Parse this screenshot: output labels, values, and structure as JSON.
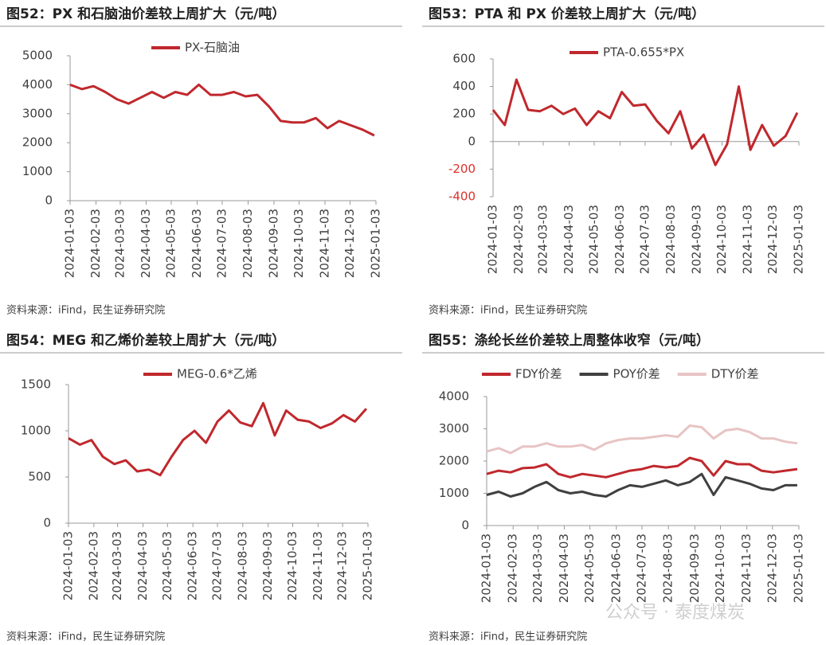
{
  "chart_data": [
    {
      "type": "line",
      "title": "图52：PX 和石脑油价差较上周扩大（元/吨）",
      "source": "资料来源：iFind，民生证券研究院",
      "x": [
        "2024-01-03",
        "2024-01-17",
        "2024-01-31",
        "2024-02-14",
        "2024-02-28",
        "2024-03-13",
        "2024-03-27",
        "2024-04-10",
        "2024-04-24",
        "2024-05-08",
        "2024-05-22",
        "2024-06-05",
        "2024-06-19",
        "2024-07-03",
        "2024-07-17",
        "2024-07-31",
        "2024-08-14",
        "2024-08-28",
        "2024-09-11",
        "2024-09-25",
        "2024-10-09",
        "2024-10-23",
        "2024-11-06",
        "2024-11-20",
        "2024-12-04",
        "2024-12-18",
        "2025-01-01"
      ],
      "series": [
        {
          "name": "PX-石脑油",
          "color": "#c0282d",
          "values": [
            4000,
            3850,
            3950,
            3750,
            3500,
            3350,
            3550,
            3750,
            3550,
            3750,
            3650,
            4000,
            3650,
            3650,
            3750,
            3600,
            3650,
            3250,
            2750,
            2700,
            2700,
            2850,
            2500,
            2750,
            2600,
            2450,
            2250
          ]
        }
      ],
      "xlim": [
        "2024-01-03",
        "2025-01-03"
      ],
      "xticks": [
        "2024-01-03",
        "2024-02-03",
        "2024-03-03",
        "2024-04-03",
        "2024-05-03",
        "2024-06-03",
        "2024-07-03",
        "2024-08-03",
        "2024-09-03",
        "2024-10-03",
        "2024-11-03",
        "2024-12-03",
        "2025-01-03"
      ],
      "ylim": [
        0,
        5000
      ],
      "yticks": [
        0,
        1000,
        2000,
        3000,
        4000,
        5000
      ]
    },
    {
      "type": "line",
      "title": "图53：PTA 和 PX 价差较上周扩大（元/吨）",
      "source": "资料来源：iFind，民生证券研究院",
      "x": [
        "2024-01-03",
        "2024-01-17",
        "2024-01-31",
        "2024-02-14",
        "2024-02-28",
        "2024-03-13",
        "2024-03-27",
        "2024-04-10",
        "2024-04-24",
        "2024-05-08",
        "2024-05-22",
        "2024-06-05",
        "2024-06-19",
        "2024-07-03",
        "2024-07-17",
        "2024-07-31",
        "2024-08-14",
        "2024-08-28",
        "2024-09-11",
        "2024-09-25",
        "2024-10-09",
        "2024-10-23",
        "2024-11-06",
        "2024-11-20",
        "2024-12-04",
        "2024-12-18",
        "2025-01-01"
      ],
      "series": [
        {
          "name": "PTA-0.655*PX",
          "color": "#c0282d",
          "values": [
            230,
            120,
            450,
            230,
            220,
            260,
            200,
            240,
            120,
            220,
            170,
            360,
            260,
            270,
            150,
            60,
            220,
            -50,
            50,
            -170,
            -20,
            400,
            -60,
            120,
            -30,
            40,
            210
          ]
        }
      ],
      "xlim": [
        "2024-01-03",
        "2025-01-03"
      ],
      "xticks": [
        "2024-01-03",
        "2024-02-03",
        "2024-03-03",
        "2024-04-03",
        "2024-05-03",
        "2024-06-03",
        "2024-07-03",
        "2024-08-03",
        "2024-09-03",
        "2024-10-03",
        "2024-11-03",
        "2024-12-03",
        "2025-01-03"
      ],
      "ylim": [
        -400,
        600
      ],
      "yticks": [
        -400,
        -200,
        0,
        200,
        400,
        600
      ],
      "negative_tick_color": "#e0302a"
    },
    {
      "type": "line",
      "title": "图54：MEG 和乙烯价差较上周扩大（元/吨）",
      "source": "资料来源：iFind，民生证券研究院",
      "x": [
        "2024-01-03",
        "2024-01-17",
        "2024-01-31",
        "2024-02-14",
        "2024-02-28",
        "2024-03-13",
        "2024-03-27",
        "2024-04-10",
        "2024-04-24",
        "2024-05-08",
        "2024-05-22",
        "2024-06-05",
        "2024-06-19",
        "2024-07-03",
        "2024-07-17",
        "2024-07-31",
        "2024-08-14",
        "2024-08-28",
        "2024-09-11",
        "2024-09-25",
        "2024-10-09",
        "2024-10-23",
        "2024-11-06",
        "2024-11-20",
        "2024-12-04",
        "2024-12-18",
        "2025-01-01"
      ],
      "series": [
        {
          "name": "MEG-0.6*乙烯",
          "color": "#c0282d",
          "values": [
            920,
            850,
            900,
            720,
            640,
            680,
            560,
            580,
            520,
            720,
            900,
            1000,
            870,
            1100,
            1220,
            1090,
            1050,
            1300,
            950,
            1220,
            1120,
            1100,
            1030,
            1080,
            1170,
            1100,
            1240
          ]
        }
      ],
      "xlim": [
        "2024-01-03",
        "2025-01-03"
      ],
      "xticks": [
        "2024-01-03",
        "2024-02-03",
        "2024-03-03",
        "2024-04-03",
        "2024-05-03",
        "2024-06-03",
        "2024-07-03",
        "2024-08-03",
        "2024-09-03",
        "2024-10-03",
        "2024-11-03",
        "2024-12-03",
        "2025-01-03"
      ],
      "ylim": [
        0,
        1500
      ],
      "yticks": [
        0,
        500,
        1000,
        1500
      ]
    },
    {
      "type": "line",
      "title": "图55：涤纶长丝价差较上周整体收窄（元/吨）",
      "source": "资料来源：iFind，民生证券研究院",
      "x": [
        "2024-01-03",
        "2024-01-17",
        "2024-01-31",
        "2024-02-14",
        "2024-02-28",
        "2024-03-13",
        "2024-03-27",
        "2024-04-10",
        "2024-04-24",
        "2024-05-08",
        "2024-05-22",
        "2024-06-05",
        "2024-06-19",
        "2024-07-03",
        "2024-07-17",
        "2024-07-31",
        "2024-08-14",
        "2024-08-28",
        "2024-09-11",
        "2024-09-25",
        "2024-10-09",
        "2024-10-23",
        "2024-11-06",
        "2024-11-20",
        "2024-12-04",
        "2024-12-18",
        "2025-01-01"
      ],
      "series": [
        {
          "name": "FDY价差",
          "color": "#c0282d",
          "values": [
            1600,
            1700,
            1650,
            1780,
            1800,
            1900,
            1600,
            1500,
            1600,
            1550,
            1500,
            1600,
            1700,
            1750,
            1850,
            1800,
            1850,
            2100,
            2000,
            1550,
            2000,
            1900,
            1900,
            1700,
            1650,
            1700,
            1750
          ]
        },
        {
          "name": "POY价差",
          "color": "#404040",
          "values": [
            950,
            1050,
            900,
            1000,
            1200,
            1350,
            1100,
            1000,
            1050,
            950,
            900,
            1100,
            1250,
            1200,
            1300,
            1400,
            1250,
            1350,
            1600,
            950,
            1500,
            1400,
            1300,
            1150,
            1100,
            1250,
            1250
          ]
        },
        {
          "name": "DTY价差",
          "color": "#e8c4c4",
          "values": [
            2300,
            2400,
            2250,
            2450,
            2450,
            2550,
            2450,
            2450,
            2500,
            2350,
            2550,
            2650,
            2700,
            2700,
            2750,
            2800,
            2750,
            3100,
            3050,
            2700,
            2950,
            3000,
            2900,
            2700,
            2700,
            2600,
            2550
          ]
        }
      ],
      "xlim": [
        "2024-01-03",
        "2025-01-03"
      ],
      "xticks": [
        "2024-01-03",
        "2024-02-03",
        "2024-03-03",
        "2024-04-03",
        "2024-05-03",
        "2024-06-03",
        "2024-07-03",
        "2024-08-03",
        "2024-09-03",
        "2024-10-03",
        "2024-11-03",
        "2024-12-03",
        "2025-01-03"
      ],
      "ylim": [
        0,
        4000
      ],
      "yticks": [
        0,
        1000,
        2000,
        3000,
        4000
      ]
    }
  ],
  "watermark": "公众号 · 泰度煤炭"
}
